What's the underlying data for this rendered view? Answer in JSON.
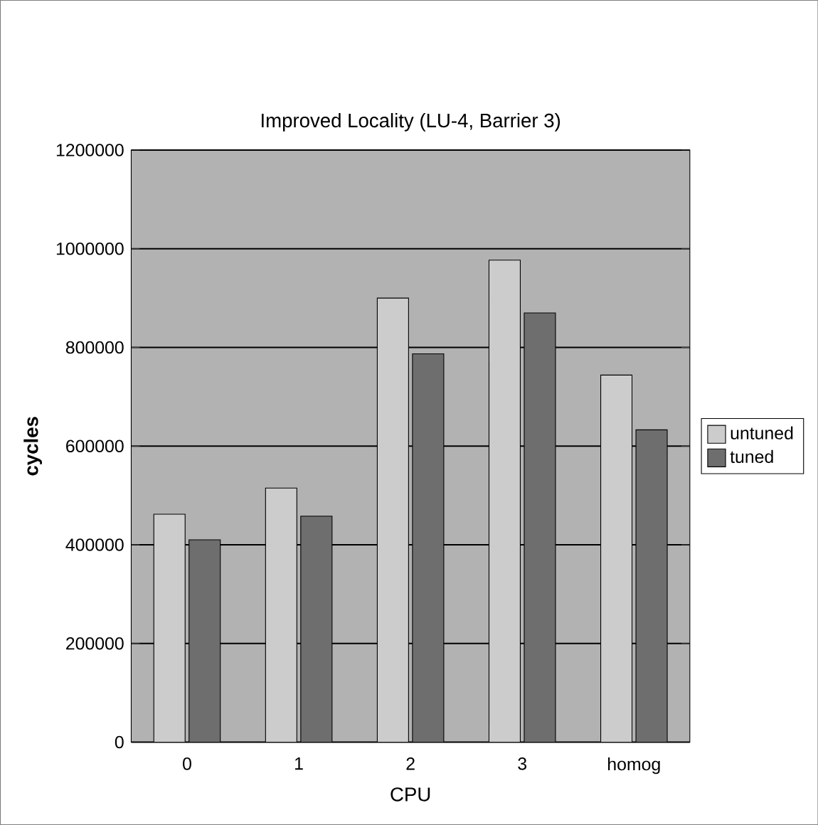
{
  "chart_data": {
    "type": "bar",
    "title": "Improved Locality (LU-4, Barrier 3)",
    "xlabel": "CPU",
    "ylabel": "cycles",
    "categories": [
      "0",
      "1",
      "2",
      "3",
      "homog"
    ],
    "series": [
      {
        "name": "untuned",
        "color": "#cccccc",
        "values": [
          462000,
          515000,
          900000,
          977000,
          744000
        ]
      },
      {
        "name": "tuned",
        "color": "#6e6e6e",
        "values": [
          410000,
          458000,
          787000,
          870000,
          633000
        ]
      }
    ],
    "ylim": [
      0,
      1200000
    ],
    "yticks": [
      0,
      200000,
      400000,
      600000,
      800000,
      1000000,
      1200000
    ],
    "grid": "y",
    "legend": "right"
  }
}
